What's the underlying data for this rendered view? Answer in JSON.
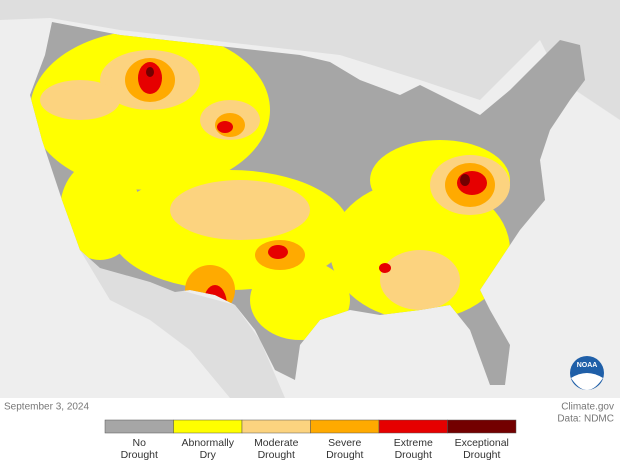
{
  "map": {
    "date": "September 3, 2024",
    "credit": "Climate.gov",
    "source": "Data: NDMC",
    "logo": "NOAA",
    "legend": [
      {
        "lines": [
          "No",
          "Drought"
        ],
        "color": "#a6a6a6"
      },
      {
        "lines": [
          "Abnormally",
          "Dry"
        ],
        "color": "#ffff00"
      },
      {
        "lines": [
          "Moderate",
          "Drought"
        ],
        "color": "#fcd37f"
      },
      {
        "lines": [
          "Severe",
          "Drought"
        ],
        "color": "#ffaa00"
      },
      {
        "lines": [
          "Extreme",
          "Drought"
        ],
        "color": "#e60000"
      },
      {
        "lines": [
          "Exceptional",
          "Drought"
        ],
        "color": "#730000"
      }
    ]
  }
}
